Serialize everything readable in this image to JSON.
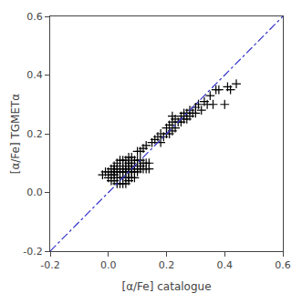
{
  "chart_data": {
    "type": "scatter",
    "xlabel": "[α/Fe] catalogue",
    "ylabel": "[α/Fe] TGMETα",
    "xlim": [
      -0.2,
      0.6
    ],
    "ylim": [
      -0.2,
      0.6
    ],
    "xticks": [
      -0.2,
      {
        "value": 0.0,
        "label": "0.0"
      },
      0.2,
      0.4,
      0.6
    ],
    "yticks": [
      -0.2,
      {
        "value": 0.0,
        "label": "0.0"
      },
      0.2,
      0.4,
      0.6
    ],
    "grid": false,
    "series": [
      {
        "type": "scatter",
        "marker": "+",
        "color": "black",
        "x": [
          -0.02,
          -0.01,
          0.0,
          0.0,
          0.01,
          0.01,
          0.01,
          0.02,
          0.02,
          0.02,
          0.02,
          0.02,
          0.03,
          0.03,
          0.03,
          0.03,
          0.03,
          0.04,
          0.04,
          0.04,
          0.04,
          0.04,
          0.04,
          0.05,
          0.05,
          0.05,
          0.05,
          0.05,
          0.05,
          0.06,
          0.06,
          0.06,
          0.06,
          0.06,
          0.06,
          0.07,
          0.07,
          0.07,
          0.07,
          0.07,
          0.07,
          0.07,
          0.08,
          0.08,
          0.08,
          0.08,
          0.08,
          0.08,
          0.09,
          0.09,
          0.09,
          0.09,
          0.09,
          0.1,
          0.1,
          0.1,
          0.1,
          0.11,
          0.11,
          0.11,
          0.12,
          0.12,
          0.13,
          0.13,
          0.14,
          0.14,
          0.1,
          0.11,
          0.12,
          0.13,
          0.15,
          0.16,
          0.17,
          0.18,
          0.18,
          0.19,
          0.2,
          0.2,
          0.21,
          0.21,
          0.22,
          0.22,
          0.22,
          0.23,
          0.23,
          0.24,
          0.25,
          0.25,
          0.26,
          0.26,
          0.27,
          0.27,
          0.28,
          0.28,
          0.29,
          0.3,
          0.3,
          0.31,
          0.32,
          0.33,
          0.34,
          0.35,
          0.36,
          0.37,
          0.38,
          0.4,
          0.41,
          0.42,
          0.44
        ],
        "values": [
          0.06,
          0.07,
          0.05,
          0.07,
          0.04,
          0.06,
          0.08,
          0.04,
          0.06,
          0.07,
          0.08,
          0.09,
          0.03,
          0.05,
          0.07,
          0.08,
          0.1,
          0.03,
          0.05,
          0.07,
          0.08,
          0.09,
          0.11,
          0.03,
          0.05,
          0.07,
          0.08,
          0.09,
          0.11,
          0.03,
          0.05,
          0.07,
          0.08,
          0.09,
          0.11,
          0.04,
          0.05,
          0.07,
          0.08,
          0.09,
          0.1,
          0.12,
          0.05,
          0.07,
          0.08,
          0.09,
          0.1,
          0.12,
          0.05,
          0.07,
          0.08,
          0.09,
          0.11,
          0.07,
          0.08,
          0.09,
          0.11,
          0.08,
          0.09,
          0.11,
          0.08,
          0.1,
          0.08,
          0.1,
          0.08,
          0.1,
          0.14,
          0.14,
          0.15,
          0.16,
          0.17,
          0.18,
          0.19,
          0.17,
          0.2,
          0.19,
          0.2,
          0.22,
          0.2,
          0.23,
          0.21,
          0.24,
          0.26,
          0.22,
          0.25,
          0.24,
          0.24,
          0.26,
          0.25,
          0.27,
          0.25,
          0.27,
          0.26,
          0.28,
          0.27,
          0.27,
          0.29,
          0.3,
          0.28,
          0.31,
          0.3,
          0.33,
          0.3,
          0.35,
          0.35,
          0.3,
          0.36,
          0.35,
          0.37
        ]
      },
      {
        "type": "line",
        "line_style": "dashdot",
        "color": "#3333cc",
        "x": [
          -0.2,
          0.6
        ],
        "values": [
          -0.2,
          0.6
        ]
      }
    ]
  }
}
